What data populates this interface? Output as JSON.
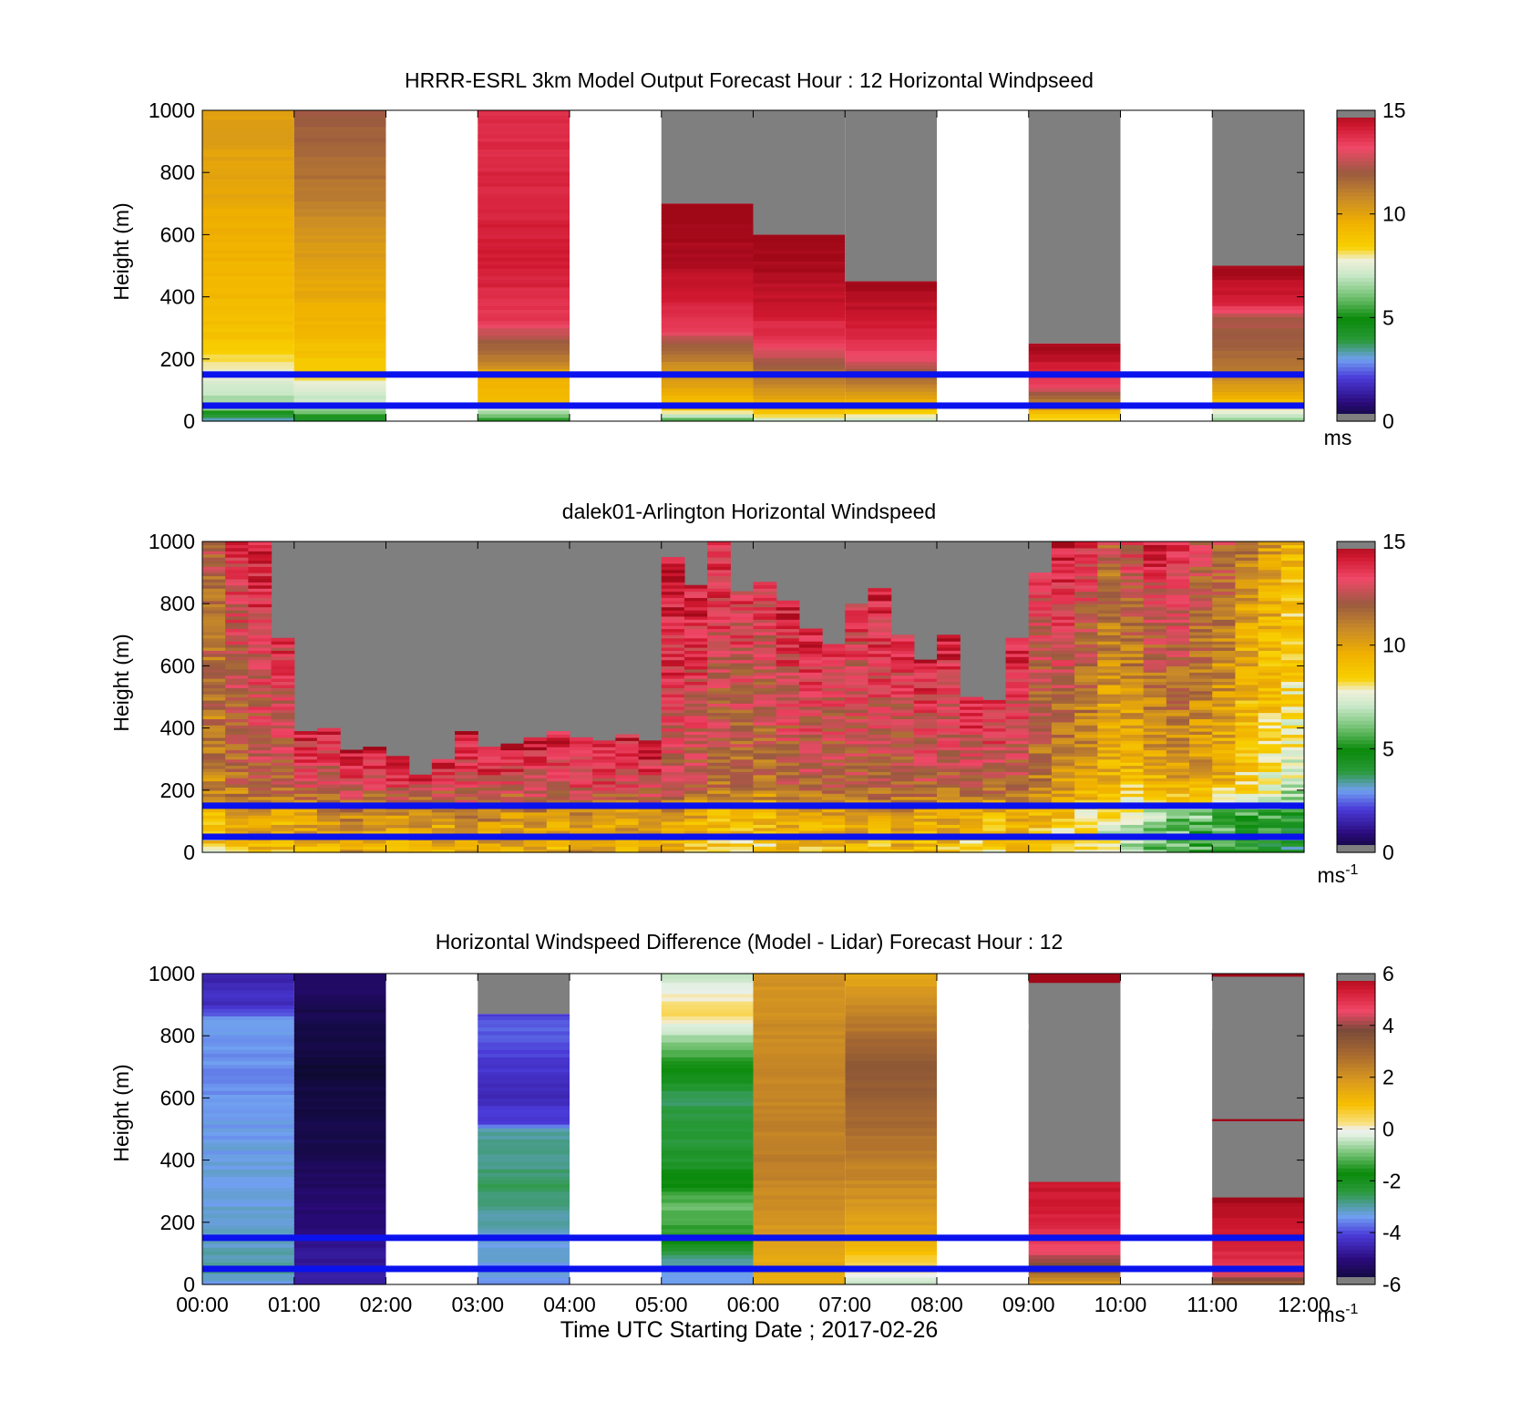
{
  "figure": {
    "xlabel": "Time UTC  Starting Date ; 2017-02-26",
    "x_ticks": [
      "00:00",
      "01:00",
      "02:00",
      "03:00",
      "04:00",
      "05:00",
      "06:00",
      "07:00",
      "08:00",
      "09:00",
      "10:00",
      "11:00",
      "12:00"
    ],
    "reference_lines": {
      "heights_m": [
        150,
        50
      ],
      "color": "#0a12ee"
    },
    "nodata_color": "#7f7f7f"
  },
  "chart_data": [
    {
      "type": "heatmap",
      "title": "HRRR-ESRL 3km Model Output   Forecast Hour : 12 Horizontal Windpseed",
      "ylabel": "Height (m)",
      "ylim": [
        0,
        1000
      ],
      "y_ticks": [
        "0",
        "200",
        "400",
        "600",
        "800",
        "1000"
      ],
      "xlim_hours": [
        0,
        12
      ],
      "colorbar": {
        "min": 0,
        "max": 15,
        "ticks": [
          "0",
          "5",
          "10",
          "15"
        ],
        "unit": "ms",
        "unit_sup": "",
        "scale": "speed"
      },
      "columns": [
        {
          "hour": 0,
          "profile": [
            [
              0,
              3
            ],
            [
              20,
              4
            ],
            [
              40,
              6.5
            ],
            [
              80,
              6.8
            ],
            [
              130,
              7.5
            ],
            [
              180,
              8
            ],
            [
              260,
              8.8
            ],
            [
              320,
              9
            ],
            [
              420,
              9.3
            ],
            [
              600,
              9.6
            ],
            [
              800,
              10
            ],
            [
              1000,
              10.2
            ]
          ],
          "top": 1000
        },
        {
          "hour": 1,
          "profile": [
            [
              0,
              4
            ],
            [
              30,
              6
            ],
            [
              60,
              7
            ],
            [
              110,
              7.5
            ],
            [
              160,
              8.5
            ],
            [
              260,
              9.2
            ],
            [
              400,
              9.8
            ],
            [
              600,
              10.5
            ],
            [
              800,
              11.5
            ],
            [
              1000,
              12
            ]
          ],
          "top": 1000
        },
        {
          "hour": 3,
          "profile": [
            [
              0,
              5
            ],
            [
              30,
              6.5
            ],
            [
              60,
              9
            ],
            [
              150,
              9.5
            ],
            [
              190,
              11
            ],
            [
              260,
              12
            ],
            [
              320,
              13.5
            ],
            [
              500,
              14.2
            ],
            [
              700,
              14
            ],
            [
              1000,
              13.8
            ]
          ],
          "top": 1000
        },
        {
          "hour": 5,
          "profile": [
            [
              0,
              5
            ],
            [
              30,
              8
            ],
            [
              90,
              9.8
            ],
            [
              170,
              10.5
            ],
            [
              250,
              12
            ],
            [
              300,
              13.5
            ],
            [
              450,
              14.5
            ],
            [
              600,
              15
            ],
            [
              700,
              15.2
            ]
          ],
          "top": 700
        },
        {
          "hour": 6,
          "profile": [
            [
              0,
              7
            ],
            [
              30,
              9
            ],
            [
              100,
              10.5
            ],
            [
              180,
              12
            ],
            [
              250,
              13.5
            ],
            [
              400,
              14.5
            ],
            [
              600,
              15.2
            ]
          ],
          "top": 600
        },
        {
          "hour": 7,
          "profile": [
            [
              0,
              7
            ],
            [
              40,
              9
            ],
            [
              110,
              11
            ],
            [
              200,
              13
            ],
            [
              280,
              14
            ],
            [
              450,
              15
            ]
          ],
          "top": 450
        },
        {
          "hour": 9,
          "profile": [
            [
              0,
              8
            ],
            [
              30,
              9.2
            ],
            [
              60,
              11
            ],
            [
              120,
              13.5
            ],
            [
              200,
              14.5
            ],
            [
              250,
              15
            ]
          ],
          "top": 250
        },
        {
          "hour": 11,
          "profile": [
            [
              0,
              6
            ],
            [
              30,
              7.5
            ],
            [
              80,
              9.5
            ],
            [
              150,
              11
            ],
            [
              250,
              12
            ],
            [
              330,
              12.2
            ],
            [
              380,
              14
            ],
            [
              430,
              14.5
            ],
            [
              500,
              15
            ]
          ],
          "top": 500
        }
      ]
    },
    {
      "type": "heatmap",
      "title": "dalek01-Arlington  Horizontal Windspeed",
      "ylabel": "Height (m)",
      "ylim": [
        0,
        1000
      ],
      "y_ticks": [
        "0",
        "200",
        "400",
        "600",
        "800",
        "1000"
      ],
      "xlim_hours": [
        0,
        12
      ],
      "colorbar": {
        "min": 0,
        "max": 15,
        "ticks": [
          "0",
          "5",
          "10",
          "15"
        ],
        "unit": "ms",
        "unit_sup": "-1",
        "scale": "speed"
      },
      "lidar_columns": {
        "top_m": [
          1000,
          1000,
          1000,
          690,
          390,
          400,
          330,
          340,
          310,
          250,
          300,
          390,
          340,
          350,
          370,
          390,
          370,
          360,
          380,
          360,
          950,
          860,
          1000,
          840,
          870,
          810,
          720,
          670,
          800,
          850,
          700,
          620,
          700,
          500,
          490,
          690,
          900,
          1000,
          1000,
          1000,
          1000,
          1000,
          1000,
          1000,
          1000,
          1000,
          1000,
          1000
        ],
        "sfc_speed": [
          8.5,
          9,
          9.5,
          9,
          9.5,
          9.5,
          10,
          9.5,
          9.5,
          10,
          9.5,
          10,
          10,
          9.5,
          10,
          9.5,
          10,
          9.5,
          9.5,
          10,
          9.5,
          9,
          8.5,
          8.5,
          8.5,
          9,
          9,
          9,
          9.5,
          9,
          9.5,
          9,
          9,
          8.5,
          8.5,
          9,
          8.5,
          8,
          7.5,
          7,
          6.5,
          6,
          5.5,
          5.5,
          5,
          4.5,
          4.5,
          4
        ],
        "top_speed": [
          12,
          13.5,
          14,
          13.5,
          14,
          14.2,
          14.5,
          14.5,
          14.5,
          14.5,
          14.5,
          14.2,
          14.5,
          14.5,
          14.2,
          14,
          14,
          14.2,
          14,
          14.5,
          14.5,
          14.2,
          14,
          13.5,
          13.5,
          14,
          14,
          13.5,
          13.5,
          14,
          13.8,
          14.2,
          14.2,
          14,
          14,
          14,
          13.5,
          14.5,
          13.5,
          12,
          13,
          14,
          14,
          12.5,
          12,
          11,
          10.5,
          9.5
        ],
        "mid_speed": [
          11,
          11.5,
          12,
          12,
          12.5,
          12.5,
          13,
          13,
          13,
          13,
          13,
          13,
          13,
          13,
          13,
          13,
          13,
          13,
          13,
          13,
          12.5,
          12,
          11.5,
          11.5,
          11.5,
          11.8,
          12,
          11.8,
          12,
          12,
          11.8,
          12,
          12,
          12,
          12,
          12,
          11,
          10.5,
          10,
          9.5,
          9,
          9.5,
          10,
          10,
          9.5,
          8.5,
          8,
          7.5
        ],
        "gaps_m": [
          [
            1,
            920
          ],
          [
            2,
            800
          ],
          [
            1,
            720
          ],
          [
            3,
            450
          ]
        ]
      }
    },
    {
      "type": "heatmap",
      "title": "Horizontal Windspeed Difference (Model - Lidar) Forecast Hour : 12",
      "ylabel": "Height (m)",
      "ylim": [
        0,
        1000
      ],
      "y_ticks": [
        "0",
        "200",
        "400",
        "600",
        "800",
        "1000"
      ],
      "xlim_hours": [
        0,
        12
      ],
      "colorbar": {
        "min": -6,
        "max": 6,
        "ticks": [
          "-6",
          "-4",
          "-2",
          "0",
          "2",
          "4",
          "6"
        ],
        "unit": "ms",
        "unit_sup": "-1",
        "scale": "diff"
      },
      "columns": [
        {
          "hour": 0,
          "profile": [
            [
              0,
              -3.5
            ],
            [
              50,
              -2.8
            ],
            [
              150,
              -3.2
            ],
            [
              400,
              -3.3
            ],
            [
              700,
              -3.5
            ],
            [
              850,
              -3.4
            ],
            [
              900,
              -4.3
            ],
            [
              1000,
              -4.5
            ]
          ],
          "top": 1000
        },
        {
          "hour": 1,
          "profile": [
            [
              0,
              -4.5
            ],
            [
              50,
              -4.6
            ],
            [
              150,
              -5
            ],
            [
              300,
              -5.3
            ],
            [
              500,
              -5.6
            ],
            [
              700,
              -5.8
            ],
            [
              900,
              -5.5
            ],
            [
              1000,
              -5.2
            ]
          ],
          "top": 1000
        },
        {
          "hour": 3,
          "profile": [
            [
              0,
              -3.4
            ],
            [
              150,
              -3.2
            ],
            [
              300,
              -2.6
            ],
            [
              500,
              -3
            ],
            [
              520,
              -4
            ],
            [
              600,
              -4.4
            ],
            [
              700,
              -4.2
            ],
            [
              800,
              -3.8
            ],
            [
              870,
              -4
            ]
          ],
          "top": 870
        },
        {
          "hour": 5,
          "profile": [
            [
              0,
              -3.5
            ],
            [
              60,
              -3.2
            ],
            [
              150,
              -1.5
            ],
            [
              250,
              -1
            ],
            [
              400,
              -2.2
            ],
            [
              600,
              -2.6
            ],
            [
              800,
              -0.6
            ],
            [
              880,
              0.5
            ],
            [
              1000,
              -0.5
            ]
          ],
          "top": 1000
        },
        {
          "hour": 6,
          "profile": [
            [
              0,
              1.5
            ],
            [
              100,
              1.6
            ],
            [
              200,
              2
            ],
            [
              400,
              2.5
            ],
            [
              600,
              2.3
            ],
            [
              800,
              2.2
            ],
            [
              1000,
              2
            ]
          ],
          "top": 1000
        },
        {
          "hour": 7,
          "profile": [
            [
              0,
              -0.5
            ],
            [
              60,
              0.4
            ],
            [
              150,
              1.5
            ],
            [
              400,
              2.5
            ],
            [
              600,
              3.2
            ],
            [
              700,
              3.5
            ],
            [
              850,
              2.5
            ],
            [
              1000,
              1.5
            ]
          ],
          "top": 1000
        },
        {
          "hour": 9,
          "profile": [
            [
              0,
              1.5
            ],
            [
              40,
              3
            ],
            [
              100,
              4.5
            ],
            [
              200,
              5.2
            ],
            [
              330,
              5.5
            ]
          ],
          "top": 330,
          "nodata": [
            [
              330,
              820
            ],
            [
              840,
              970
            ]
          ],
          "extra": [
            [
              970,
              1000,
              6
            ]
          ]
        },
        {
          "hour": 11,
          "profile": [
            [
              0,
              3
            ],
            [
              30,
              4.5
            ],
            [
              80,
              5
            ],
            [
              200,
              5.5
            ],
            [
              280,
              6
            ]
          ],
          "top": 280,
          "nodata": [
            [
              280,
              820
            ],
            [
              950,
              990
            ]
          ],
          "extra": [
            [
              525,
              532,
              6
            ],
            [
              990,
              1000,
              6
            ]
          ]
        }
      ]
    }
  ]
}
